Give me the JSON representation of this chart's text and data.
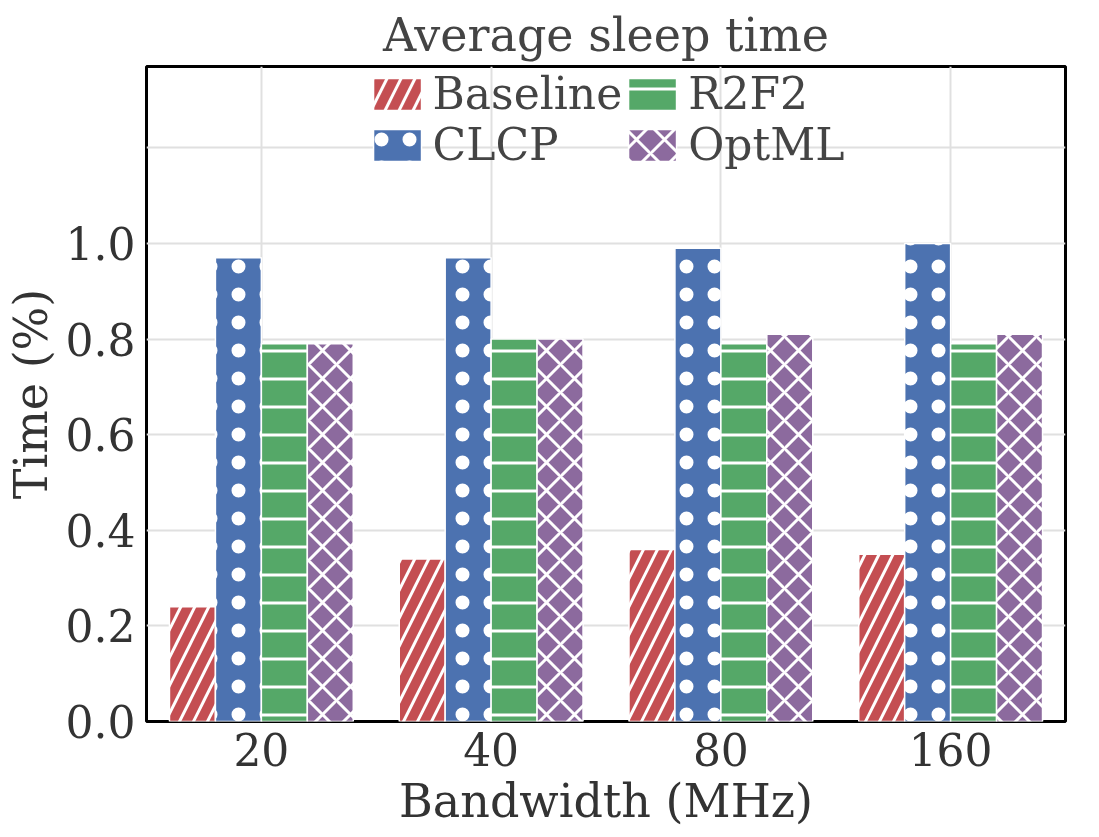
{
  "chart_data": {
    "type": "bar",
    "title": "Average sleep time",
    "xlabel": "Bandwidth (MHz)",
    "ylabel": "Time (%)",
    "categories": [
      "20",
      "40",
      "80",
      "160"
    ],
    "series": [
      {
        "name": "Baseline",
        "color": "#c44e52",
        "values": [
          0.24,
          0.34,
          0.36,
          0.35
        ]
      },
      {
        "name": "CLCP",
        "color": "#4c72b0",
        "values": [
          0.97,
          0.97,
          0.99,
          1.0
        ]
      },
      {
        "name": "R2F2",
        "color": "#55a868",
        "values": [
          0.79,
          0.8,
          0.79,
          0.79
        ]
      },
      {
        "name": "OptML",
        "color": "#8c6a9e",
        "values": [
          0.79,
          0.8,
          0.81,
          0.81
        ]
      }
    ],
    "ylim": [
      0,
      1.37
    ],
    "yticks": [
      {
        "value": 0,
        "label": "0.0"
      },
      {
        "value": 0.2,
        "label": "0.2"
      },
      {
        "value": 0.4,
        "label": "0.4"
      },
      {
        "value": 0.6,
        "label": "0.6"
      },
      {
        "value": 0.8,
        "label": "0.8"
      },
      {
        "value": 1.0,
        "label": "1.0"
      }
    ],
    "grid": true,
    "legend": "top"
  }
}
